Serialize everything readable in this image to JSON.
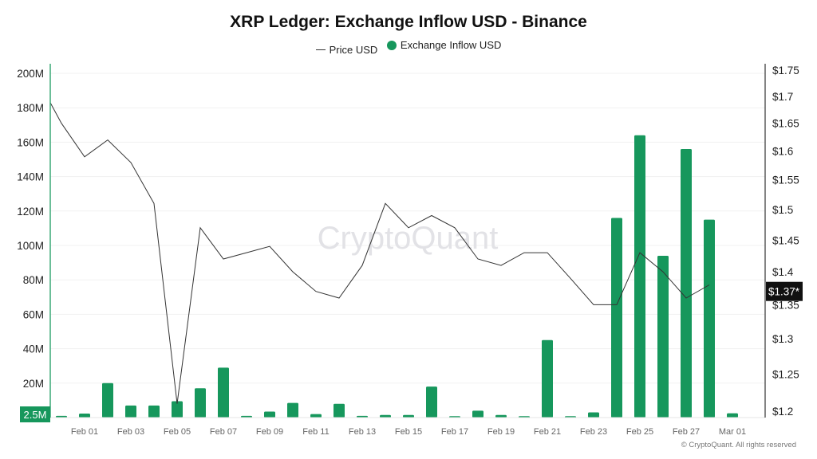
{
  "chart_data": {
    "type": "bar",
    "title": "XRP Ledger: Exchange Inflow USD - Binance",
    "legend": {
      "placement": "top-center",
      "entries": [
        "Price USD",
        "Exchange Inflow USD"
      ]
    },
    "categories": [
      "Jan 31",
      "Feb 01",
      "Feb 02",
      "Feb 03",
      "Feb 04",
      "Feb 05",
      "Feb 06",
      "Feb 07",
      "Feb 08",
      "Feb 09",
      "Feb 10",
      "Feb 11",
      "Feb 12",
      "Feb 13",
      "Feb 14",
      "Feb 15",
      "Feb 16",
      "Feb 17",
      "Feb 18",
      "Feb 19",
      "Feb 20",
      "Feb 21",
      "Feb 22",
      "Feb 23",
      "Feb 24",
      "Feb 25",
      "Feb 26",
      "Feb 27",
      "Feb 28",
      "Mar 01"
    ],
    "x_tick_labels": [
      "Feb 01",
      "Feb 03",
      "Feb 05",
      "Feb 07",
      "Feb 09",
      "Feb 11",
      "Feb 13",
      "Feb 15",
      "Feb 17",
      "Feb 19",
      "Feb 21",
      "Feb 23",
      "Feb 25",
      "Feb 27",
      "Mar 01"
    ],
    "series": [
      {
        "name": "Exchange Inflow USD",
        "type": "bar",
        "axis": "left",
        "color": "#16975c",
        "values": [
          1.0,
          2.3,
          20,
          7,
          7,
          9.5,
          17,
          29,
          1.0,
          3.5,
          8.5,
          2,
          8,
          1.0,
          1.5,
          1.5,
          18,
          0.8,
          4,
          1.5,
          0.8,
          45,
          0.8,
          3,
          116,
          164,
          94,
          156,
          115,
          2.5
        ]
      },
      {
        "name": "Price USD",
        "type": "line",
        "axis": "right",
        "color": "#333333",
        "dates": [
          "Jan 30",
          "Jan 31",
          "Feb 01",
          "Feb 02",
          "Feb 03",
          "Feb 04",
          "Feb 05",
          "Feb 06",
          "Feb 07",
          "Feb 08",
          "Feb 09",
          "Feb 10",
          "Feb 11",
          "Feb 12",
          "Feb 13",
          "Feb 14",
          "Feb 15",
          "Feb 16",
          "Feb 17",
          "Feb 18",
          "Feb 19",
          "Feb 20",
          "Feb 21",
          "Feb 22",
          "Feb 23",
          "Feb 24",
          "Feb 25",
          "Feb 26",
          "Feb 27",
          "Feb 28"
        ],
        "values": [
          1.73,
          1.65,
          1.59,
          1.62,
          1.58,
          1.51,
          1.21,
          1.47,
          1.42,
          1.43,
          1.44,
          1.4,
          1.37,
          1.36,
          1.41,
          1.51,
          1.47,
          1.49,
          1.47,
          1.42,
          1.41,
          1.43,
          1.43,
          1.39,
          1.35,
          1.35,
          1.43,
          1.4,
          1.36,
          1.38
        ]
      }
    ],
    "left_axis": {
      "unit": "USD (M)",
      "ylim": [
        0,
        200
      ],
      "tick_labels": [
        "20M",
        "40M",
        "60M",
        "80M",
        "100M",
        "120M",
        "140M",
        "160M",
        "180M",
        "200M"
      ],
      "ticks": [
        20,
        40,
        60,
        80,
        100,
        120,
        140,
        160,
        180,
        200
      ],
      "current_label": "2.5M"
    },
    "right_axis": {
      "scale": "log",
      "ylim": [
        1.2,
        1.75
      ],
      "tick_labels": [
        "$1.2",
        "$1.25",
        "$1.3",
        "$1.35",
        "$1.4",
        "$1.45",
        "$1.5",
        "$1.55",
        "$1.6",
        "$1.65",
        "$1.7",
        "$1.75"
      ],
      "ticks": [
        1.2,
        1.25,
        1.3,
        1.35,
        1.4,
        1.45,
        1.5,
        1.55,
        1.6,
        1.65,
        1.7,
        1.75
      ],
      "current_label": "$1.37*",
      "current_value": 1.37
    },
    "grid": true,
    "watermark": "CryptoQuant",
    "copyright": "© CryptoQuant. All rights reserved"
  }
}
